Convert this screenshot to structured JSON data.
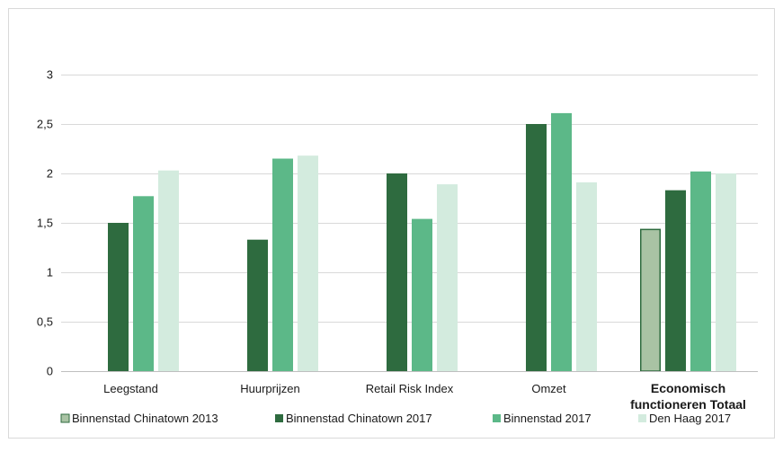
{
  "chart_data": {
    "type": "bar",
    "categories": [
      "Leegstand",
      "Huurprijzen",
      "Retail Risk Index",
      "Omzet",
      "Economisch functioneren Totaal"
    ],
    "category_lines": [
      [
        "Leegstand"
      ],
      [
        "Huurprijzen"
      ],
      [
        "Retail Risk Index"
      ],
      [
        "Omzet"
      ],
      [
        "Economisch",
        "functioneren Totaal"
      ]
    ],
    "series": [
      {
        "name": "Binnenstad Chinatown 2013",
        "color": "#a9c3a4",
        "outline": "#2e6b3f",
        "values": [
          null,
          null,
          null,
          null,
          1.44
        ]
      },
      {
        "name": "Binnenstad Chinatown 2017",
        "color": "#2e6b3f",
        "values": [
          1.5,
          1.33,
          2.0,
          2.5,
          1.83
        ]
      },
      {
        "name": "Binnenstad 2017",
        "color": "#5cb888",
        "values": [
          1.77,
          2.15,
          1.54,
          2.61,
          2.02
        ]
      },
      {
        "name": "Den Haag 2017",
        "color": "#d3ebde",
        "values": [
          2.03,
          2.18,
          1.89,
          1.91,
          2.0
        ]
      }
    ],
    "yticks": [
      "0",
      "0,5",
      "1",
      "1,5",
      "2",
      "2,5",
      "3"
    ],
    "ylim": [
      0,
      3
    ],
    "grid": true,
    "legend_position": "bottom",
    "highlighted_category": "Economisch functioneren Totaal"
  }
}
